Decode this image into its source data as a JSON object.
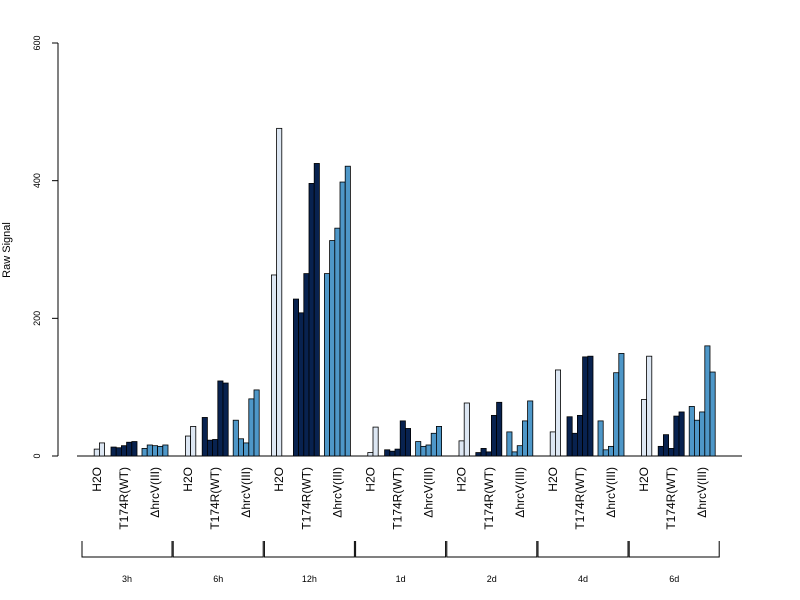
{
  "chart_data": {
    "type": "bar",
    "title": "",
    "xlabel": "",
    "ylabel": "Raw Signal",
    "ylim": [
      0,
      600
    ],
    "yticks": [
      "0",
      "200",
      "400",
      "600"
    ],
    "grid": false,
    "legend": "none",
    "colors": {
      "H2O": "#dde7f3",
      "T174R(WT)": "#08224f",
      "ΔhrcV(III)": "#4e97c8"
    },
    "conditions": [
      "H2O",
      "T174R(WT)",
      "ΔhrcV(III)"
    ],
    "groups": [
      {
        "time": "3h",
        "bars": {
          "H2O": [
            0,
            10,
            19
          ],
          "T174R(WT)": [
            13,
            12,
            15,
            20,
            21
          ],
          "ΔhrcV(III)": [
            11,
            16,
            15,
            14,
            16
          ]
        }
      },
      {
        "time": "6h",
        "bars": {
          "H2O": [
            0,
            29,
            43
          ],
          "T174R(WT)": [
            56,
            23,
            24,
            109,
            106
          ],
          "ΔhrcV(III)": [
            52,
            25,
            19,
            83,
            96
          ]
        }
      },
      {
        "time": "12h",
        "bars": {
          "H2O": [
            263,
            476,
            0
          ],
          "T174R(WT)": [
            228,
            208,
            265,
            396,
            425
          ],
          "ΔhrcV(III)": [
            265,
            313,
            331,
            398,
            421
          ]
        }
      },
      {
        "time": "1d",
        "bars": {
          "H2O": [
            0,
            5,
            42
          ],
          "T174R(WT)": [
            9,
            7,
            10,
            51,
            40
          ],
          "ΔhrcV(III)": [
            21,
            14,
            16,
            33,
            43
          ]
        }
      },
      {
        "time": "2d",
        "bars": {
          "H2O": [
            0,
            22,
            77
          ],
          "T174R(WT)": [
            5,
            11,
            6,
            59,
            78
          ],
          "ΔhrcV(III)": [
            35,
            6,
            15,
            51,
            80
          ]
        }
      },
      {
        "time": "4d",
        "bars": {
          "H2O": [
            0,
            35,
            125
          ],
          "T174R(WT)": [
            57,
            33,
            59,
            144,
            145
          ],
          "ΔhrcV(III)": [
            51,
            9,
            14,
            121,
            149
          ]
        }
      },
      {
        "time": "6d",
        "bars": {
          "H2O": [
            0,
            82,
            145
          ],
          "T174R(WT)": [
            14,
            31,
            11,
            58,
            64
          ],
          "ΔhrcV(III)": [
            72,
            52,
            64,
            160,
            122
          ]
        }
      }
    ]
  }
}
